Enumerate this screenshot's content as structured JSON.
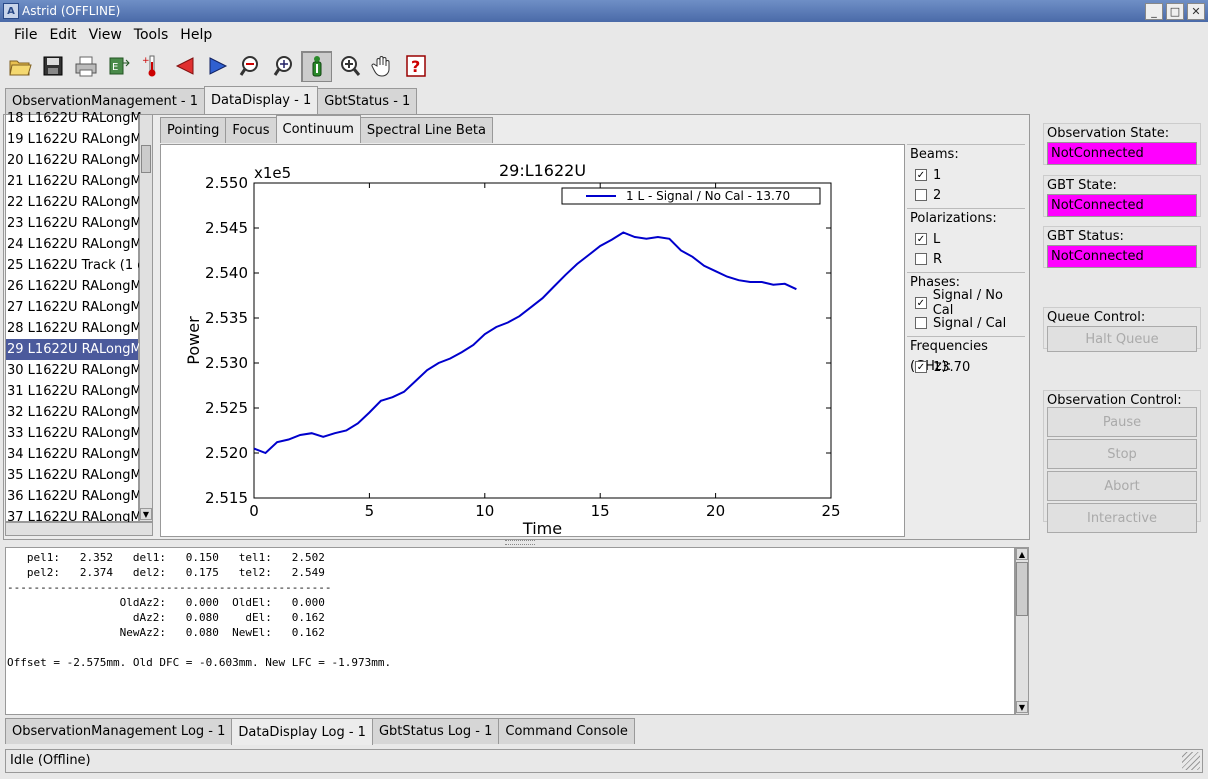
{
  "window": {
    "title": "Astrid (OFFLINE)",
    "app_icon": "app-icon",
    "controls": [
      "minimize-icon",
      "maximize-icon",
      "close-icon"
    ]
  },
  "menu": [
    "File",
    "Edit",
    "View",
    "Tools",
    "Help"
  ],
  "toolbar": [
    "open-folder-icon",
    "save-icon",
    "print-icon",
    "export-icon",
    "thermometer-icon",
    "previous-arrow-icon",
    "next-arrow-icon",
    "zoom-out-icon",
    "zoom-fit-icon",
    "info-icon",
    "zoom-in-icon",
    "pan-hand-icon",
    "help-icon"
  ],
  "main_tabs": [
    "ObservationManagement - 1",
    "DataDisplay - 1",
    "GbtStatus - 1"
  ],
  "scans": [
    "18 L1622U RALongMa",
    "19 L1622U RALongMa",
    "20 L1622U RALongMa",
    "21 L1622U RALongMa",
    "22 L1622U RALongMa",
    "23 L1622U RALongMa",
    "24 L1622U RALongMa",
    "25 L1622U Track (1 of",
    "26 L1622U RALongMa",
    "27 L1622U RALongMa",
    "28 L1622U RALongMa",
    "29 L1622U RALongMa",
    "30 L1622U RALongMa",
    "31 L1622U RALongMa",
    "32 L1622U RALongMa",
    "33 L1622U RALongMa",
    "34 L1622U RALongMa",
    "35 L1622U RALongMa",
    "36 L1622U RALongMa",
    "37 L1622U RALongMa"
  ],
  "selected_scan_index": 11,
  "display_tabs": [
    "Pointing",
    "Focus",
    "Continuum",
    "Spectral Line Beta"
  ],
  "chart_data": {
    "type": "line",
    "title": "29:L1622U",
    "xlabel": "Time",
    "ylabel": "Power",
    "scale_label": "x1e5",
    "xlim": [
      0,
      25
    ],
    "ylim": [
      2.515,
      2.55
    ],
    "xticks": [
      "0",
      "5",
      "10",
      "15",
      "20",
      "25"
    ],
    "yticks": [
      "2.515",
      "2.520",
      "2.525",
      "2.530",
      "2.535",
      "2.540",
      "2.545",
      "2.550"
    ],
    "legend": "1 L - Signal / No Cal - 13.70",
    "legend_position": "top-right",
    "color": "#0000cc",
    "series": [
      {
        "name": "1 L - Signal / No Cal - 13.70",
        "x": [
          0,
          0.5,
          1,
          1.5,
          2,
          2.5,
          3,
          3.5,
          4,
          4.5,
          5,
          5.5,
          6,
          6.5,
          7,
          7.5,
          8,
          8.5,
          9,
          9.5,
          10,
          10.5,
          11,
          11.5,
          12,
          12.5,
          13,
          13.5,
          14,
          14.5,
          15,
          15.5,
          16,
          16.5,
          17,
          17.5,
          18,
          18.5,
          19,
          19.5,
          20,
          20.5,
          21,
          21.5,
          22,
          22.5,
          23,
          23.5
        ],
        "y": [
          2.5205,
          2.52,
          2.5212,
          2.5215,
          2.522,
          2.5222,
          2.5218,
          2.5222,
          2.5225,
          2.5233,
          2.5245,
          2.5258,
          2.5262,
          2.5268,
          2.528,
          2.5292,
          2.53,
          2.5305,
          2.5312,
          2.532,
          2.5332,
          2.534,
          2.5345,
          2.5352,
          2.5362,
          2.5372,
          2.5385,
          2.5398,
          2.541,
          2.542,
          2.543,
          2.5437,
          2.5445,
          2.544,
          2.5438,
          2.544,
          2.5438,
          2.5425,
          2.5418,
          2.5408,
          2.5402,
          2.5396,
          2.5392,
          2.539,
          2.539,
          2.5387,
          2.5388,
          2.5382
        ]
      }
    ]
  },
  "side_panel": {
    "beams_label": "Beams:",
    "beams": [
      {
        "label": "1",
        "checked": true
      },
      {
        "label": "2",
        "checked": false
      }
    ],
    "pol_label": "Polarizations:",
    "pols": [
      {
        "label": "L",
        "checked": true
      },
      {
        "label": "R",
        "checked": false
      }
    ],
    "phases_label": "Phases:",
    "phases": [
      {
        "label": "Signal / No Cal",
        "checked": true
      },
      {
        "label": "Signal / Cal",
        "checked": false
      }
    ],
    "freq_label": "Frequencies (GHz):",
    "freqs": [
      {
        "label": "13.70",
        "checked": true
      }
    ]
  },
  "log_text": "   pel1:   2.352   del1:   0.150   tel1:   2.502\n   pel2:   2.374   del2:   0.175   tel2:   2.549\n-------------------------------------------------\n                 OldAz2:   0.000  OldEl:   0.000\n                   dAz2:   0.080    dEl:   0.162\n                 NewAz2:   0.080  NewEl:   0.162\n\nOffset = -2.575mm. Old DFC = -0.603mm. New LFC = -1.973mm.",
  "log_tabs": [
    "ObservationManagement Log - 1",
    "DataDisplay Log - 1",
    "GbtStatus Log - 1",
    "Command Console"
  ],
  "status": "Idle (Offline)",
  "right": {
    "obs_state_label": "Observation State:",
    "obs_state": "NotConnected",
    "gbt_state_label": "GBT State:",
    "gbt_state": "NotConnected",
    "gbt_status_label": "GBT Status:",
    "gbt_status": "NotConnected",
    "queue_label": "Queue Control:",
    "halt": "Halt Queue",
    "obs_ctrl_label": "Observation Control:",
    "pause": "Pause",
    "stop": "Stop",
    "abort": "Abort",
    "interactive": "Interactive"
  }
}
